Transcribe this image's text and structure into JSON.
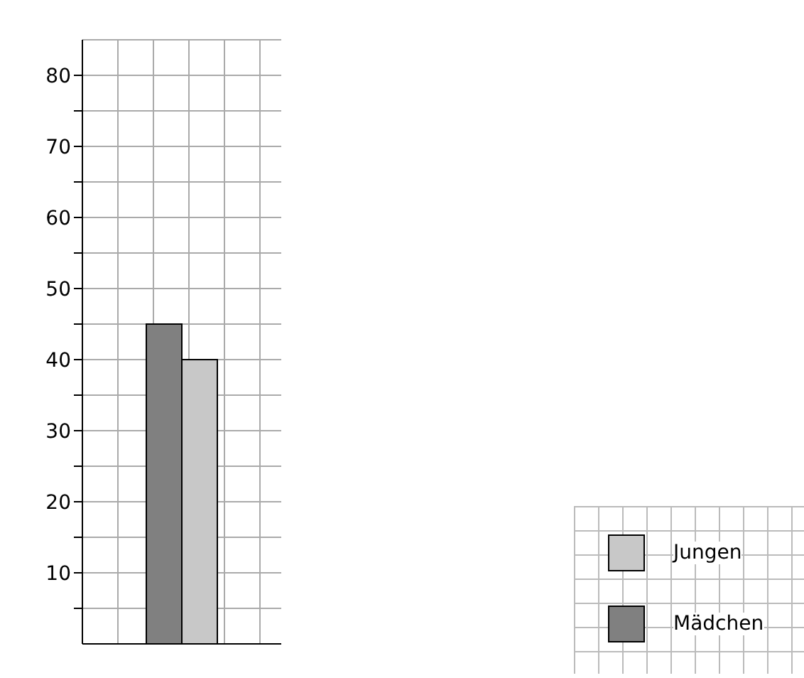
{
  "chart_data": {
    "type": "bar",
    "categories": [
      null
    ],
    "series": [
      {
        "name": "Mädchen",
        "color": "#808080",
        "values": [
          45
        ]
      },
      {
        "name": "Jungen",
        "color": "#c8c8c8",
        "values": [
          40
        ]
      }
    ],
    "ylim": [
      0,
      85
    ],
    "yticks": [
      {
        "value": 5,
        "label": null
      },
      10,
      {
        "value": 15,
        "label": null
      },
      20,
      {
        "value": 25,
        "label": null
      },
      30,
      {
        "value": 35,
        "label": null
      },
      40,
      {
        "value": 45,
        "label": null
      },
      50,
      {
        "value": 55,
        "label": null
      },
      60,
      {
        "value": 65,
        "label": null
      },
      70,
      {
        "value": 75,
        "label": null
      },
      80
    ],
    "grid": true,
    "legend": "bottom right"
  }
}
